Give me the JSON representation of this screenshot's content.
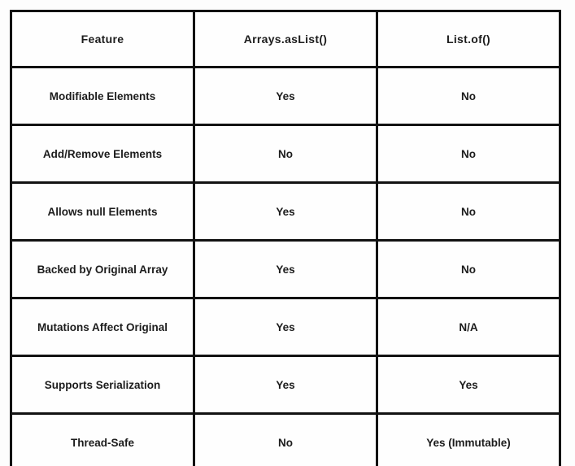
{
  "colors": {
    "border": "#121212",
    "text": "#1c1c1c",
    "cell_background": "#fefefe",
    "page_background": "#fdfdfd"
  },
  "chart_data": {
    "type": "table",
    "columns": [
      "Feature",
      "Arrays.asList()",
      "List.of()"
    ],
    "rows": [
      [
        "Modifiable Elements",
        "Yes",
        "No"
      ],
      [
        "Add/Remove Elements",
        "No",
        "No"
      ],
      [
        "Allows null Elements",
        "Yes",
        "No"
      ],
      [
        "Backed by Original Array",
        "Yes",
        "No"
      ],
      [
        "Mutations Affect Original",
        "Yes",
        "N/A"
      ],
      [
        "Supports Serialization",
        "Yes",
        "Yes"
      ],
      [
        "Thread-Safe",
        "No",
        "Yes (Immutable)"
      ]
    ]
  }
}
